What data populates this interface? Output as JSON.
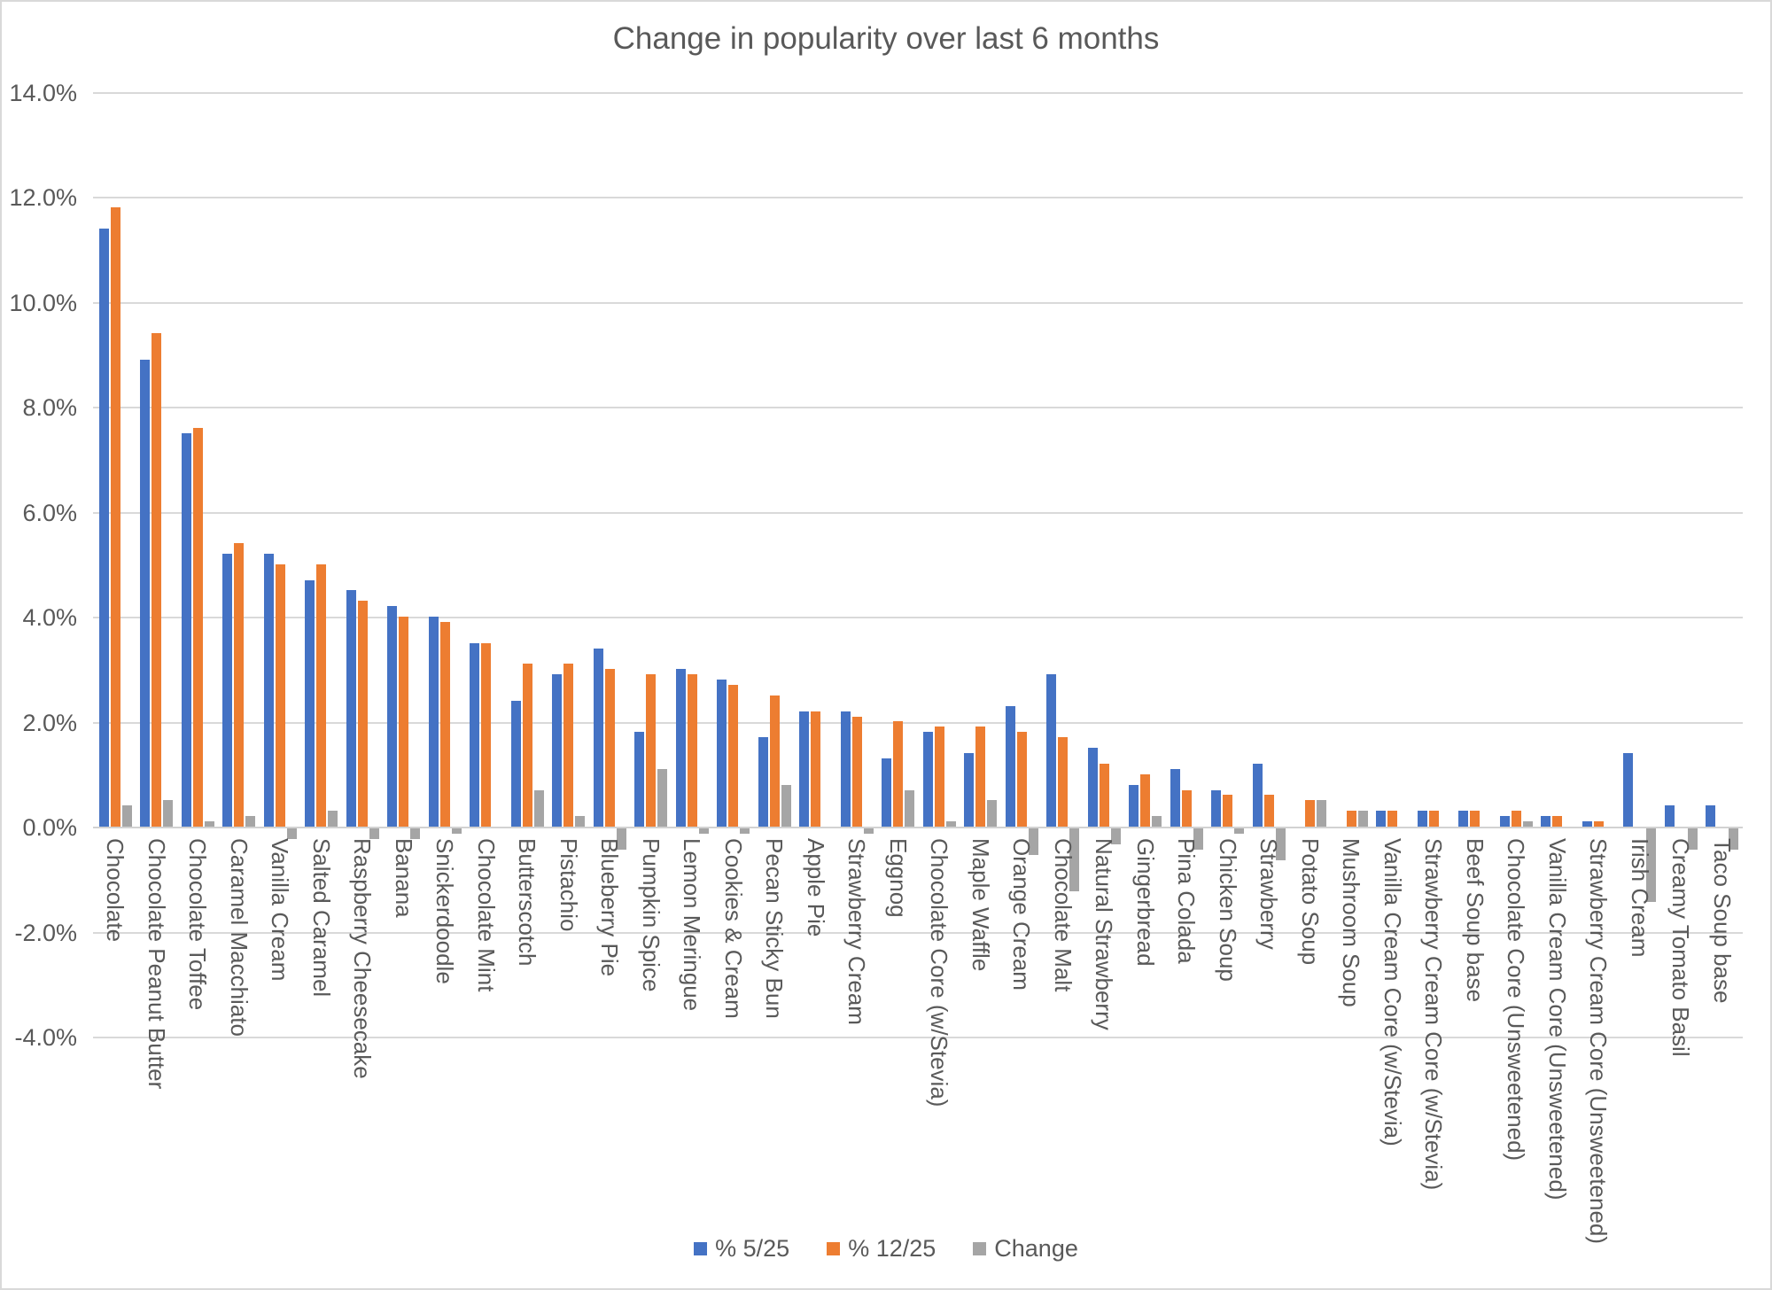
{
  "chart_data": {
    "type": "bar",
    "title": "Change in popularity over last 6 months",
    "categories": [
      "Chocolate",
      "Chocolate Peanut Butter",
      "Chocolate Toffee",
      "Caramel Macchiato",
      "Vanilla Cream",
      "Salted Caramel",
      "Raspberry Cheesecake",
      "Banana",
      "Snickerdoodle",
      "Chocolate Mint",
      "Butterscotch",
      "Pistachio",
      "Blueberry Pie",
      "Pumpkin Spice",
      "Lemon Meringue",
      "Cookies & Cream",
      "Pecan Sticky Bun",
      "Apple Pie",
      "Strawberry Cream",
      "Eggnog",
      "Chocolate Core (w/Stevia)",
      "Maple Waffle",
      "Orange Cream",
      "Chocolate Malt",
      "Natural Strawberry",
      "Gingerbread",
      "Pina Colada",
      "Chicken Soup",
      "Strawberry",
      "Potato Soup",
      "Mushroom Soup",
      "Vanilla Cream Core (w/Stevia)",
      "Strawberry Cream Core (w/Stevia)",
      "Beef Soup base",
      "Chocolate Core (Unsweetened)",
      "Vanilla Cream Core (Unsweetened)",
      "Strawberry Cream Core (Unsweetened)",
      "Irish Cream",
      "Creamy Tomato Basil",
      "Taco Soup base"
    ],
    "series": [
      {
        "name": "% 5/25",
        "color": "#4472C4",
        "values": [
          11.4,
          8.9,
          7.5,
          5.2,
          5.2,
          4.7,
          4.5,
          4.2,
          4.0,
          3.5,
          2.4,
          2.9,
          3.4,
          1.8,
          3.0,
          2.8,
          1.7,
          2.2,
          2.2,
          1.3,
          1.8,
          1.4,
          2.3,
          2.9,
          1.5,
          0.8,
          1.1,
          0.7,
          1.2,
          0.0,
          0.0,
          0.3,
          0.3,
          0.3,
          0.2,
          0.2,
          0.1,
          1.4,
          0.4,
          0.4
        ]
      },
      {
        "name": "% 12/25",
        "color": "#ED7D31",
        "values": [
          11.8,
          9.4,
          7.6,
          5.4,
          5.0,
          5.0,
          4.3,
          4.0,
          3.9,
          3.5,
          3.1,
          3.1,
          3.0,
          2.9,
          2.9,
          2.7,
          2.5,
          2.2,
          2.1,
          2.0,
          1.9,
          1.9,
          1.8,
          1.7,
          1.2,
          1.0,
          0.7,
          0.6,
          0.6,
          0.5,
          0.3,
          0.3,
          0.3,
          0.3,
          0.3,
          0.2,
          0.1,
          0.0,
          0.0,
          0.0
        ]
      },
      {
        "name": "Change",
        "color": "#A5A5A5",
        "values": [
          0.4,
          0.5,
          0.1,
          0.2,
          -0.2,
          0.3,
          -0.2,
          -0.2,
          -0.1,
          0.0,
          0.7,
          0.2,
          -0.4,
          1.1,
          -0.1,
          -0.1,
          0.8,
          0.0,
          -0.1,
          0.7,
          0.1,
          0.5,
          -0.5,
          -1.2,
          -0.3,
          0.2,
          -0.4,
          -0.1,
          -0.6,
          0.5,
          0.3,
          0.0,
          0.0,
          0.0,
          0.1,
          0.0,
          0.0,
          -1.4,
          -0.4,
          -0.4
        ]
      }
    ],
    "y_axis": {
      "min": -4,
      "max": 14,
      "step": 2,
      "tick_labels": [
        "14.0%",
        "12.0%",
        "10.0%",
        "8.0%",
        "6.0%",
        "4.0%",
        "2.0%",
        "0.0%",
        "-2.0%",
        "-4.0%"
      ]
    },
    "grid": true,
    "legend_position": "bottom",
    "x_label_rotation": "vertical"
  },
  "colors": {
    "series_blue": "#4472C4",
    "series_orange": "#ED7D31",
    "series_gray": "#A5A5A5",
    "text": "#595959",
    "gridline": "#D9D9D9",
    "background": "#FFFFFF"
  }
}
